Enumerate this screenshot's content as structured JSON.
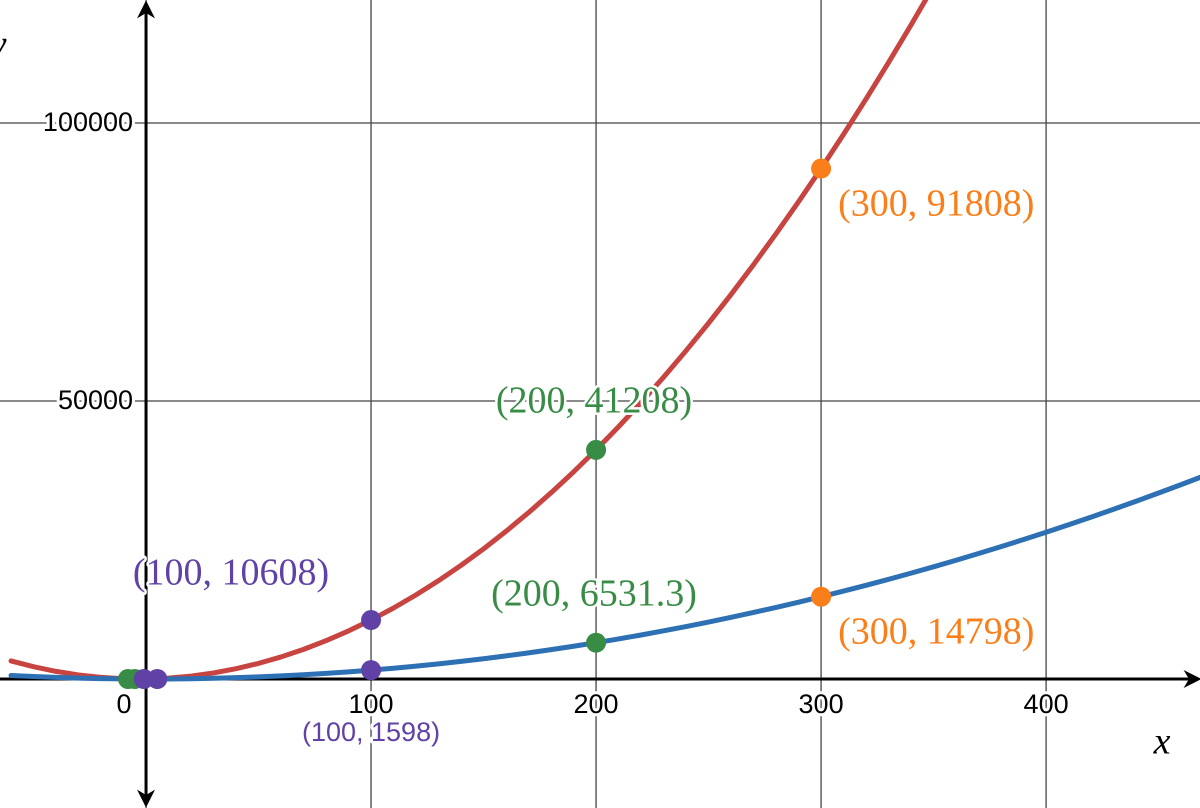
{
  "chart_data": {
    "type": "line",
    "x_label": "x",
    "y_label": "y",
    "xlim": [
      -64.9,
      468.4
    ],
    "ylim": [
      -23201,
      122122
    ],
    "xticks": [
      0,
      100,
      200,
      300,
      400
    ],
    "yticks": [
      50000,
      100000
    ],
    "grid": true,
    "x": [
      -60,
      -50,
      -40,
      -30,
      -20,
      -10,
      0,
      10,
      20,
      30,
      40,
      50,
      60,
      70,
      80,
      90,
      100,
      110,
      120,
      130,
      140,
      150,
      160,
      170,
      180,
      190,
      200,
      210,
      220,
      230,
      240,
      250,
      260,
      270,
      280,
      290,
      300,
      310,
      320,
      330,
      340,
      350,
      360,
      370,
      380,
      390,
      400,
      410,
      420,
      430,
      440,
      450,
      460,
      470
    ],
    "series": [
      {
        "color": "#c74440",
        "values": [
          3248,
          2208,
          1368,
          728,
          288,
          48,
          8,
          168,
          528,
          1088,
          1848,
          2808,
          3968,
          5328,
          6888,
          8648,
          10608,
          12768,
          15128,
          17688,
          20448,
          23408,
          26568,
          29928,
          33488,
          37248,
          41208,
          45368,
          49728,
          54288,
          59048,
          64008,
          69168,
          74528,
          80088,
          85848,
          91808,
          97968,
          104328,
          110888,
          117648,
          124608,
          null,
          null,
          null,
          null,
          null,
          null,
          null,
          null,
          null,
          null,
          null,
          null
        ]
      },
      {
        "color": "#2d70b3",
        "values": [
          638,
          448,
          291.3,
          168,
          78,
          21.3,
          -2,
          8,
          51.3,
          128,
          238,
          381.3,
          558,
          768,
          1011.3,
          1288,
          1598,
          1941.3,
          2318,
          2728,
          3171.3,
          3648,
          4158,
          4701.3,
          5278,
          5888,
          6531.3,
          7208,
          7918,
          8661.3,
          9438,
          10248,
          11091.3,
          11968,
          12878,
          13821.3,
          14798,
          15808,
          16851.3,
          17928,
          19038,
          20181.3,
          21358,
          22568,
          23811.3,
          25088,
          26398,
          27741.3,
          29118,
          30528,
          31971.3,
          33448,
          34958,
          36501.3
        ]
      }
    ],
    "points": [
      {
        "x": -8,
        "y": 0,
        "color": "#388c46"
      },
      {
        "x": -5,
        "y": 0,
        "color": "#388c46"
      },
      {
        "x": -1,
        "y": 0,
        "color": "#6042a6"
      },
      {
        "x": 5,
        "y": 0,
        "color": "#6042a6"
      },
      {
        "x": 100,
        "y": 10608,
        "color": "#6042a6",
        "label": "(100, 10608)"
      },
      {
        "x": 100,
        "y": 1598,
        "color": "#6042a6",
        "label": "(100, 1598)"
      },
      {
        "x": 200,
        "y": 41208,
        "color": "#388c46",
        "label": "(200, 41208)"
      },
      {
        "x": 200,
        "y": 6531.3,
        "color": "#388c46",
        "label": "(200, 6531.3)"
      },
      {
        "x": 300,
        "y": 91808,
        "color": "#fa7e19",
        "label": "(300, 91808)"
      },
      {
        "x": 300,
        "y": 14798,
        "color": "#fa7e19",
        "label": "(300, 14798)"
      }
    ]
  }
}
